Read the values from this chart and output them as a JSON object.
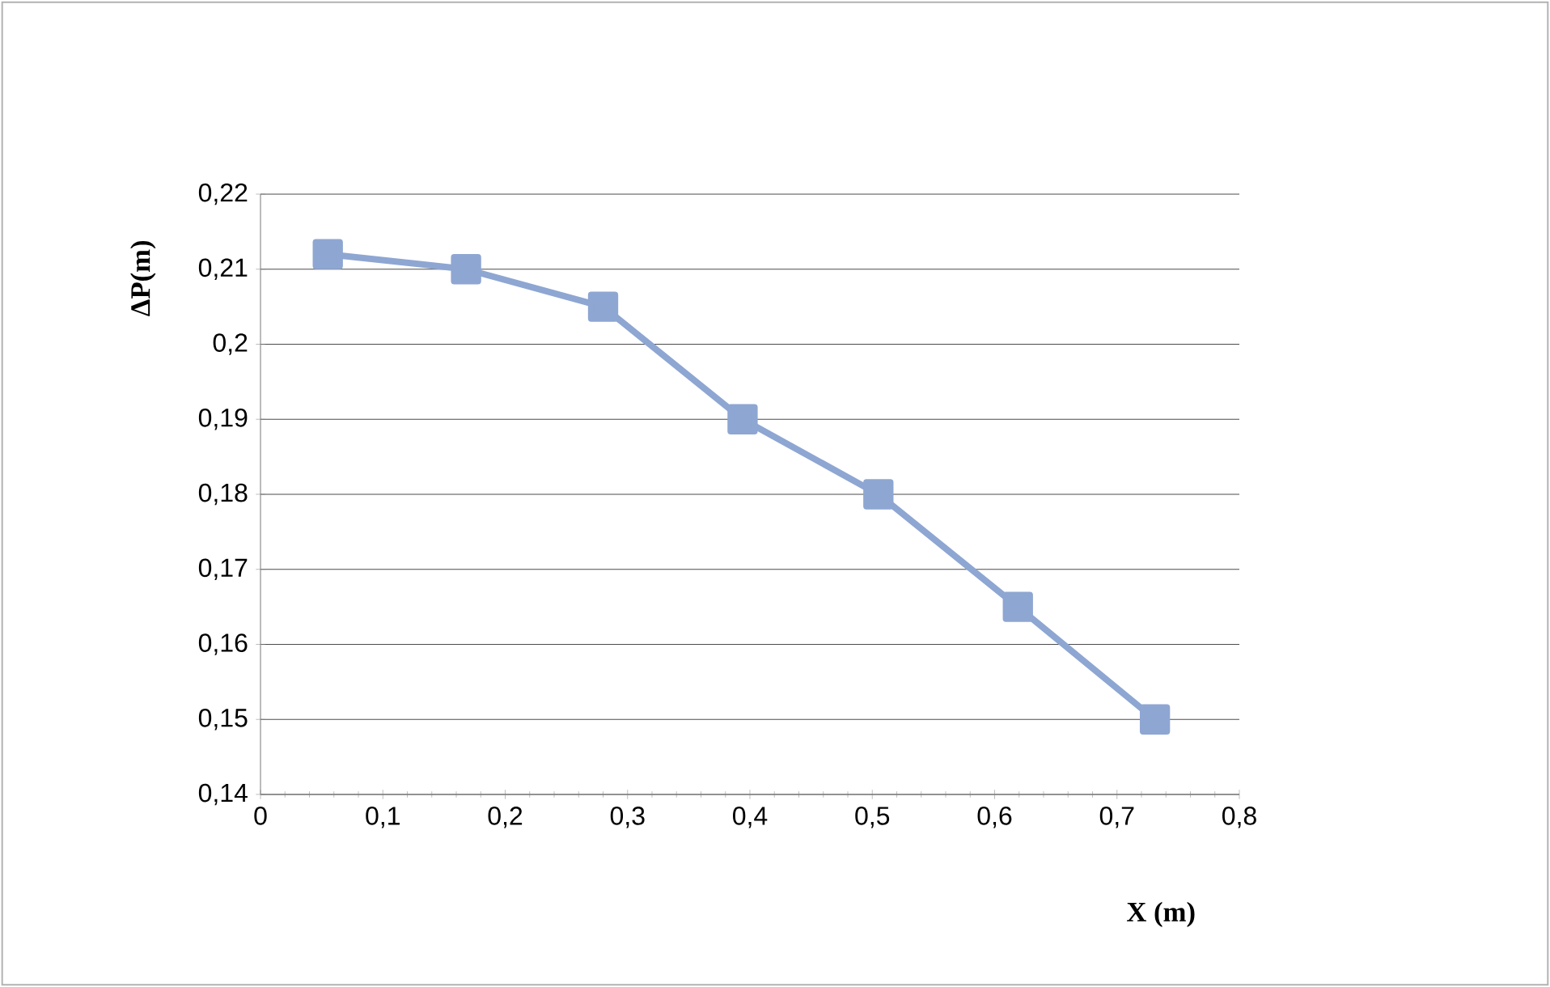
{
  "chart_data": {
    "type": "line",
    "xlabel": "X (m)",
    "ylabel": "ΔP(m)",
    "x": [
      0.055,
      0.168,
      0.28,
      0.394,
      0.505,
      0.619,
      0.731
    ],
    "series": [
      {
        "color": "#8ea6d2",
        "values": [
          0.212,
          0.21,
          0.205,
          0.19,
          0.18,
          0.165,
          0.15
        ]
      }
    ],
    "xlim": [
      0,
      0.8
    ],
    "ylim": [
      0.14,
      0.22
    ],
    "xticks": [
      0,
      {
        "value": 0.1,
        "label": "0,1"
      },
      {
        "value": 0.2,
        "label": "0,2"
      },
      {
        "value": 0.3,
        "label": "0,3"
      },
      {
        "value": 0.4,
        "label": "0,4"
      },
      {
        "value": 0.5,
        "label": "0,5"
      },
      {
        "value": 0.6,
        "label": "0,6"
      },
      {
        "value": 0.7,
        "label": "0,7"
      },
      {
        "value": 0.8,
        "label": "0,8"
      }
    ],
    "yticks": [
      {
        "value": 0.14,
        "label": "0,14"
      },
      {
        "value": 0.15,
        "label": "0,15"
      },
      {
        "value": 0.16,
        "label": "0,16"
      },
      {
        "value": 0.17,
        "label": "0,17"
      },
      {
        "value": 0.18,
        "label": "0,18"
      },
      {
        "value": 0.19,
        "label": "0,19"
      },
      {
        "value": 0.2,
        "label": "0,2"
      },
      {
        "value": 0.21,
        "label": "0,21"
      },
      {
        "value": 0.22,
        "label": "0,22"
      }
    ],
    "grid": "y",
    "marker": "square",
    "line_style": "solid"
  }
}
